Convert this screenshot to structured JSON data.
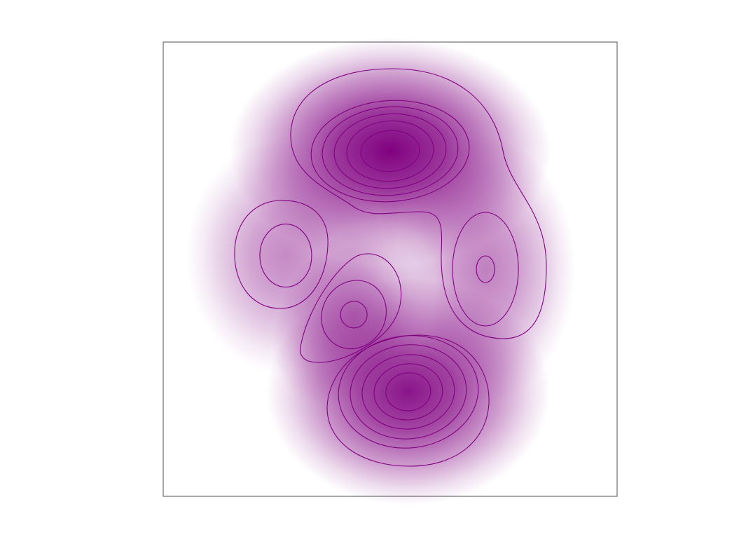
{
  "chart_data": {
    "type": "heatmap",
    "title": "",
    "xlabel": "",
    "ylabel": "",
    "grid": false,
    "legend": "none",
    "colormap": "white-to-purple",
    "colors": {
      "background": "#ffffff",
      "fill": "#800080",
      "contour": "#800080",
      "frame": "#262626"
    },
    "levels": [
      0.14,
      0.28,
      0.42,
      0.56,
      0.7,
      0.84
    ],
    "lobes": [
      {
        "name": "top",
        "x": 0.5,
        "y": 0.76,
        "peak": 1.0
      },
      {
        "name": "bottom",
        "x": 0.54,
        "y": 0.23,
        "peak": 0.92
      },
      {
        "name": "left",
        "x": 0.27,
        "y": 0.53,
        "peak": 0.46
      },
      {
        "name": "right",
        "x": 0.71,
        "y": 0.5,
        "peak": 0.5
      },
      {
        "name": "center-lower-left",
        "x": 0.42,
        "y": 0.4,
        "peak": 0.55
      }
    ]
  }
}
